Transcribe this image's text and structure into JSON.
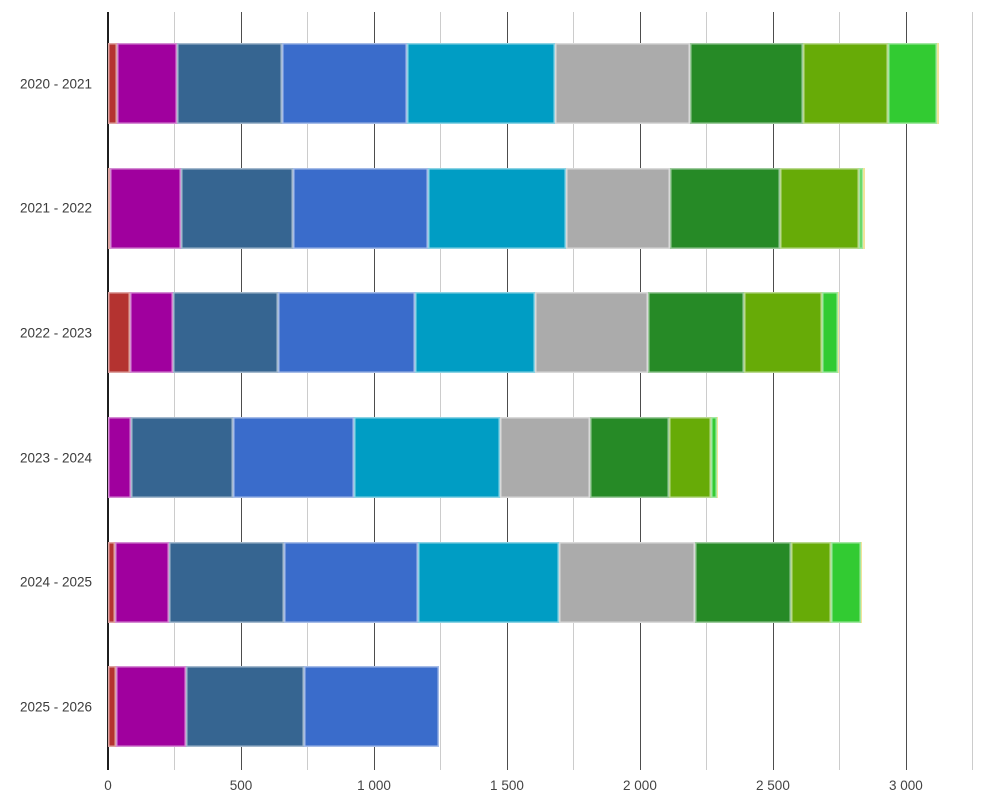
{
  "chart_data": {
    "type": "bar",
    "orientation": "horizontal",
    "stacked": true,
    "title": "",
    "xlabel": "",
    "ylabel": "",
    "legend": "none",
    "grid": "vertical",
    "categories": [
      "2020 - 2021",
      "2021 - 2022",
      "2022 - 2023",
      "2023 - 2024",
      "2024 - 2025",
      "2025 - 2026"
    ],
    "series": [
      {
        "name": "red",
        "color": "#b43330",
        "values": [
          33,
          9,
          81,
          0,
          27,
          31
        ]
      },
      {
        "name": "magenta",
        "color": "#a0009e",
        "values": [
          226,
          267,
          163,
          88,
          201,
          263
        ]
      },
      {
        "name": "steel-blue",
        "color": "#366591",
        "values": [
          395,
          419,
          397,
          382,
          432,
          444
        ]
      },
      {
        "name": "blue",
        "color": "#3a6ccb",
        "values": [
          471,
          509,
          514,
          456,
          504,
          505
        ]
      },
      {
        "name": "cyan",
        "color": "#009dc4",
        "values": [
          556,
          518,
          451,
          549,
          530,
          0
        ]
      },
      {
        "name": "gray",
        "color": "#ababab",
        "values": [
          506,
          392,
          426,
          338,
          514,
          0
        ]
      },
      {
        "name": "green",
        "color": "#268a26",
        "values": [
          427,
          413,
          360,
          297,
          360,
          0
        ]
      },
      {
        "name": "olive-green",
        "color": "#67ab07",
        "values": [
          320,
          297,
          292,
          159,
          151,
          0
        ]
      },
      {
        "name": "bright-green",
        "color": "#32cb32",
        "values": [
          183,
          16,
          62,
          20,
          113,
          0
        ]
      },
      {
        "name": "yellow",
        "color": "#e0c420",
        "values": [
          6,
          6,
          4,
          4,
          4,
          0
        ]
      }
    ],
    "totals": [
      3123,
      2846,
      2750,
      2293,
      2836,
      1243
    ],
    "x_axis": {
      "min": 0,
      "max": 3380,
      "gridline_interval": 250,
      "label_interval": 500,
      "tick_labels": [
        "0",
        "500",
        "1 000",
        "1 500",
        "2 000",
        "2 500",
        "3 000"
      ]
    },
    "colors": {
      "axis": "#1f1f1f",
      "major_gridline": "#4d4d4d",
      "minor_gridline": "#cccccc",
      "label_text": "#3b3b3b"
    }
  }
}
